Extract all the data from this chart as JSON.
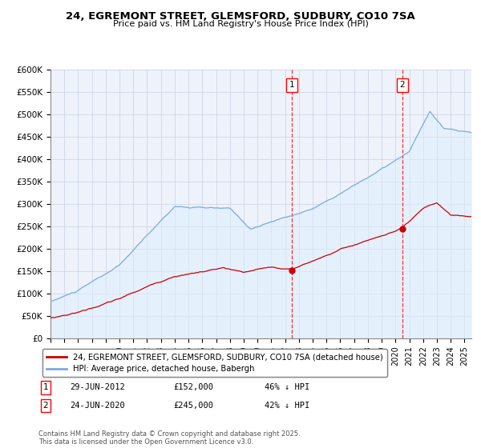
{
  "title": "24, EGREMONT STREET, GLEMSFORD, SUDBURY, CO10 7SA",
  "subtitle": "Price paid vs. HM Land Registry's House Price Index (HPI)",
  "legend_label_red": "24, EGREMONT STREET, GLEMSFORD, SUDBURY, CO10 7SA (detached house)",
  "legend_label_blue": "HPI: Average price, detached house, Babergh",
  "annotation1_date": "29-JUN-2012",
  "annotation1_price": 152000,
  "annotation1_hpi": "46% ↓ HPI",
  "annotation2_date": "24-JUN-2020",
  "annotation2_price": 245000,
  "annotation2_hpi": "42% ↓ HPI",
  "footnote": "Contains HM Land Registry data © Crown copyright and database right 2025.\nThis data is licensed under the Open Government Licence v3.0.",
  "red_color": "#cc0000",
  "blue_color": "#7aaadd",
  "blue_fill_color": "#ddeeff",
  "background_color": "#eef3fb",
  "grid_color": "#c8d0e0",
  "ylim": [
    0,
    600000
  ],
  "yticks": [
    0,
    50000,
    100000,
    150000,
    200000,
    250000,
    300000,
    350000,
    400000,
    450000,
    500000,
    550000,
    600000
  ],
  "ytick_labels": [
    "£0",
    "£50K",
    "£100K",
    "£150K",
    "£200K",
    "£250K",
    "£300K",
    "£350K",
    "£400K",
    "£450K",
    "£500K",
    "£550K",
    "£600K"
  ]
}
